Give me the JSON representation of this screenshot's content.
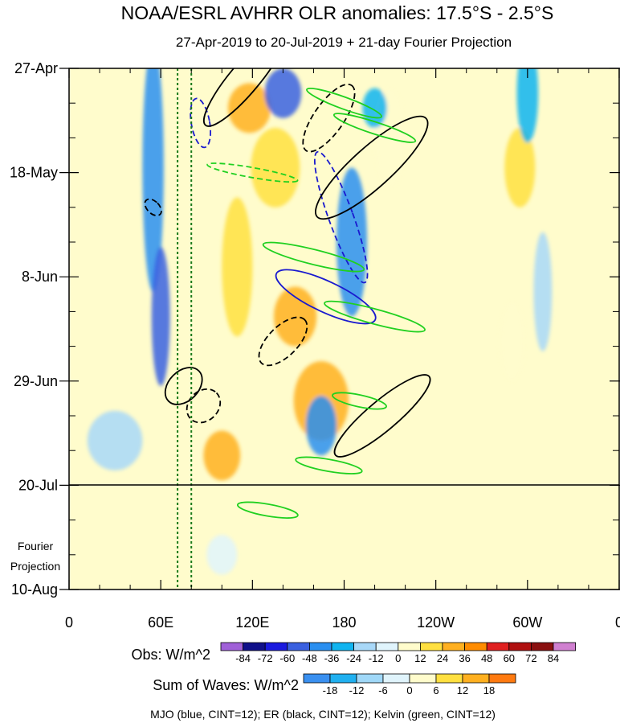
{
  "chart_data": {
    "type": "heatmap",
    "title": "NOAA/ESRL AVHRR OLR anomalies: 17.5°S - 2.5°S",
    "subtitle": "27-Apr-2019 to 20-Jul-2019 + 21-day Fourier Projection",
    "x_ticks": [
      {
        "label": "0",
        "lon": 0
      },
      {
        "label": "60E",
        "lon": 60
      },
      {
        "label": "120E",
        "lon": 120
      },
      {
        "label": "180",
        "lon": 180
      },
      {
        "label": "120W",
        "lon": 240
      },
      {
        "label": "60W",
        "lon": 300
      },
      {
        "label": "0",
        "lon": 360
      }
    ],
    "xlim": [
      0,
      360
    ],
    "y_ticks": [
      {
        "label": "27-Apr",
        "day": 0
      },
      {
        "label": "18-May",
        "day": 21
      },
      {
        "label": "8-Jun",
        "day": 42
      },
      {
        "label": "29-Jun",
        "day": 63
      },
      {
        "label": "20-Jul",
        "day": 84
      },
      {
        "label": "10-Aug",
        "day": 105
      }
    ],
    "ylim_days": [
      0,
      105
    ],
    "observation_end_day": 84,
    "projection_label_lines": [
      "Fourier",
      "Projection"
    ],
    "mjo_lines_lon": [
      71,
      80
    ],
    "obs_colorbar": {
      "label": "Obs: W/m^2",
      "levels": [
        "-84",
        "-72",
        "-60",
        "-48",
        "-36",
        "-24",
        "-12",
        "0",
        "12",
        "24",
        "36",
        "48",
        "60",
        "72",
        "84"
      ],
      "colors": [
        "#a060d8",
        "#10108a",
        "#1a1adf",
        "#3a60e0",
        "#2a8ff0",
        "#10b4f0",
        "#a8d8f8",
        "#e0f4fc",
        "#fffccc",
        "#ffe040",
        "#ffb020",
        "#ff8c00",
        "#e02020",
        "#b01010",
        "#8a1010",
        "#d080d0"
      ]
    },
    "waves_colorbar": {
      "label": "Sum of Waves: W/m^2",
      "levels": [
        "-18",
        "-12",
        "-6",
        "0",
        "6",
        "12",
        "18"
      ],
      "colors": [
        "#3a90f0",
        "#20b0f0",
        "#a0d8f8",
        "#e0f4fc",
        "#fffccc",
        "#ffe040",
        "#ffb020",
        "#ff7a10"
      ]
    },
    "footer": "MJO (blue, CINT=12); ER (black, CINT=12); Kelvin (green, CINT=12)",
    "features": [
      {
        "kind": "pos",
        "lon": 118,
        "day": 8,
        "rx": 14,
        "ry": 5,
        "val": 36
      },
      {
        "kind": "pos",
        "lon": 135,
        "day": 20,
        "rx": 16,
        "ry": 8,
        "val": 24
      },
      {
        "kind": "pos",
        "lon": 110,
        "day": 40,
        "rx": 10,
        "ry": 14,
        "val": 24
      },
      {
        "kind": "pos",
        "lon": 148,
        "day": 50,
        "rx": 14,
        "ry": 6,
        "val": 36
      },
      {
        "kind": "pos",
        "lon": 165,
        "day": 67,
        "rx": 18,
        "ry": 8,
        "val": 36
      },
      {
        "kind": "pos",
        "lon": 100,
        "day": 78,
        "rx": 12,
        "ry": 5,
        "val": 36
      },
      {
        "kind": "pos",
        "lon": 210,
        "day": 14,
        "rx": 10,
        "ry": 10,
        "val": 12
      },
      {
        "kind": "pos",
        "lon": 295,
        "day": 20,
        "rx": 10,
        "ry": 8,
        "val": 24
      },
      {
        "kind": "pos",
        "lon": 290,
        "day": 55,
        "rx": 8,
        "ry": 8,
        "val": 12
      },
      {
        "kind": "neg",
        "lon": 55,
        "day": 20,
        "rx": 7,
        "ry": 25,
        "val": -36
      },
      {
        "kind": "neg",
        "lon": 60,
        "day": 50,
        "rx": 6,
        "ry": 14,
        "val": -48
      },
      {
        "kind": "neg",
        "lon": 140,
        "day": 5,
        "rx": 12,
        "ry": 5,
        "val": -48
      },
      {
        "kind": "neg",
        "lon": 185,
        "day": 35,
        "rx": 10,
        "ry": 15,
        "val": -36
      },
      {
        "kind": "neg",
        "lon": 165,
        "day": 72,
        "rx": 10,
        "ry": 6,
        "val": -36
      },
      {
        "kind": "neg",
        "lon": 200,
        "day": 8,
        "rx": 8,
        "ry": 4,
        "val": -24
      },
      {
        "kind": "neg",
        "lon": 300,
        "day": 5,
        "rx": 7,
        "ry": 10,
        "val": -24
      },
      {
        "kind": "neg",
        "lon": 310,
        "day": 45,
        "rx": 6,
        "ry": 12,
        "val": -12
      },
      {
        "kind": "neg",
        "lon": 30,
        "day": 75,
        "rx": 18,
        "ry": 6,
        "val": -12
      },
      {
        "kind": "neg",
        "lon": 100,
        "day": 98,
        "rx": 10,
        "ry": 4,
        "val": -6
      }
    ],
    "overlays": [
      {
        "wave": "MJO",
        "dash": false,
        "lon": 168,
        "day": 46,
        "rx": 10,
        "ry": 11,
        "angle": -65
      },
      {
        "wave": "MJO",
        "dash": true,
        "lon": 178,
        "day": 30,
        "rx": 8,
        "ry": 14,
        "angle": -20
      },
      {
        "wave": "MJO",
        "dash": true,
        "lon": 86,
        "day": 11,
        "rx": 6,
        "ry": 5,
        "angle": -10
      },
      {
        "wave": "ER",
        "dash": false,
        "lon": 198,
        "day": 20,
        "rx": 48,
        "ry": 4,
        "angle": -42
      },
      {
        "wave": "ER",
        "dash": false,
        "lon": 115,
        "day": 2,
        "rx": 40,
        "ry": 3,
        "angle": -50
      },
      {
        "wave": "ER",
        "dash": false,
        "lon": 205,
        "day": 70,
        "rx": 40,
        "ry": 3,
        "angle": -40
      },
      {
        "wave": "ER",
        "dash": false,
        "lon": 75,
        "day": 64,
        "rx": 14,
        "ry": 3,
        "angle": -45
      },
      {
        "wave": "ER",
        "dash": true,
        "lon": 170,
        "day": 10,
        "rx": 26,
        "ry": 3,
        "angle": -55
      },
      {
        "wave": "ER",
        "dash": true,
        "lon": 140,
        "day": 55,
        "rx": 20,
        "ry": 3,
        "angle": -45
      },
      {
        "wave": "ER",
        "dash": true,
        "lon": 88,
        "day": 68,
        "rx": 12,
        "ry": 3,
        "angle": -45
      },
      {
        "wave": "ER",
        "dash": true,
        "lon": 55,
        "day": 28,
        "rx": 4,
        "ry": 2,
        "angle": -45
      },
      {
        "wave": "Kelvin",
        "dash": false,
        "lon": 180,
        "day": 7,
        "rx": 26,
        "ry": 1.2,
        "angle": 20
      },
      {
        "wave": "Kelvin",
        "dash": false,
        "lon": 200,
        "day": 12,
        "rx": 28,
        "ry": 1.2,
        "angle": 18
      },
      {
        "wave": "Kelvin",
        "dash": false,
        "lon": 160,
        "day": 38,
        "rx": 34,
        "ry": 1.5,
        "angle": 14
      },
      {
        "wave": "Kelvin",
        "dash": false,
        "lon": 200,
        "day": 50,
        "rx": 34,
        "ry": 1.5,
        "angle": 15
      },
      {
        "wave": "Kelvin",
        "dash": false,
        "lon": 190,
        "day": 67,
        "rx": 18,
        "ry": 1.2,
        "angle": 12
      },
      {
        "wave": "Kelvin",
        "dash": false,
        "lon": 170,
        "day": 80,
        "rx": 22,
        "ry": 1.2,
        "angle": 10
      },
      {
        "wave": "Kelvin",
        "dash": false,
        "lon": 130,
        "day": 89,
        "rx": 20,
        "ry": 1.2,
        "angle": 10
      },
      {
        "wave": "Kelvin",
        "dash": true,
        "lon": 120,
        "day": 21,
        "rx": 30,
        "ry": 1,
        "angle": 10
      }
    ]
  }
}
